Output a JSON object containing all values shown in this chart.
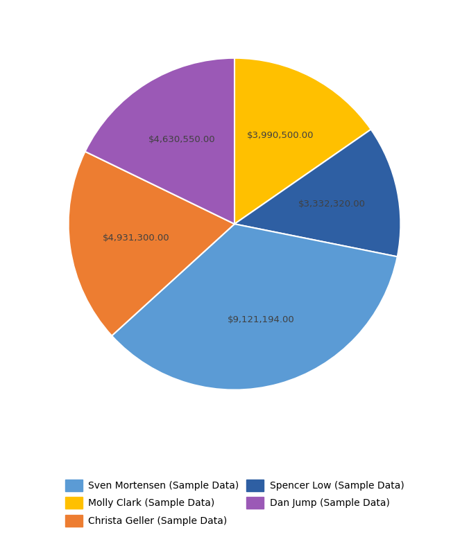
{
  "labels": [
    "Sven Mortensen (Sample Data)",
    "Christa Geller (Sample Data)",
    "Dan Jump (Sample Data)",
    "Molly Clark (Sample Data)",
    "Spencer Low (Sample Data)"
  ],
  "values": [
    9121194.0,
    4931300.0,
    4630550.0,
    3990500.0,
    3332320.0
  ],
  "colors": [
    "#5b9bd5",
    "#ed7d31",
    "#9b59b6",
    "#ffc000",
    "#2e5fa3"
  ],
  "label_texts": [
    "$9,121,194.00",
    "$4,931,300.00",
    "$4,630,550.00",
    "$3,990,500.00",
    "$3,332,320.00"
  ],
  "label_color": "#404040",
  "background_color": "#ffffff",
  "legend_fontsize": 10,
  "label_fontsize": 9.5,
  "legend_order_labels": [
    "Sven Mortensen (Sample Data)",
    "Molly Clark (Sample Data)",
    "Christa Geller (Sample Data)",
    "Spencer Low (Sample Data)",
    "Dan Jump (Sample Data)"
  ],
  "legend_order_colors": [
    "#5b9bd5",
    "#ffc000",
    "#ed7d31",
    "#2e5fa3",
    "#9b59b6"
  ]
}
